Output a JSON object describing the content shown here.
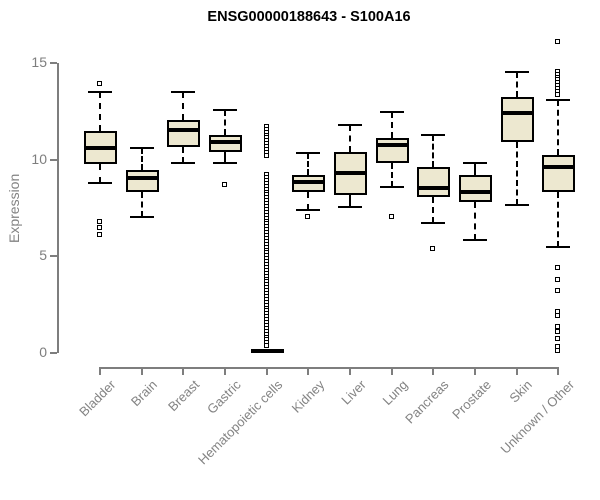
{
  "chart_data": {
    "type": "boxplot",
    "title": "ENSG00000188643 - S100A16",
    "ylabel": "Expression",
    "ylim": [
      0,
      16.5
    ],
    "yticks": [
      0,
      5,
      10,
      15
    ],
    "grid": false,
    "legend": false,
    "categories": [
      "Bladder",
      "Brain",
      "Breast",
      "Gastric",
      "Hematopoietic cells",
      "Kidney",
      "Liver",
      "Lung",
      "Pancreas",
      "Prostate",
      "Skin",
      "Unknown / Other"
    ],
    "series": [
      {
        "label": "Bladder",
        "whisker_low": 8.8,
        "q1": 9.8,
        "median": 10.6,
        "q3": 11.5,
        "whisker_high": 13.5,
        "outliers": [
          13.9,
          6.8,
          6.45,
          6.1
        ]
      },
      {
        "label": "Brain",
        "whisker_low": 7.05,
        "q1": 8.35,
        "median": 9.05,
        "q3": 9.45,
        "whisker_high": 10.6,
        "outliers": []
      },
      {
        "label": "Breast",
        "whisker_low": 9.85,
        "q1": 10.65,
        "median": 11.55,
        "q3": 12.05,
        "whisker_high": 13.5,
        "outliers": []
      },
      {
        "label": "Gastric",
        "whisker_low": 9.85,
        "q1": 10.4,
        "median": 10.9,
        "q3": 11.3,
        "whisker_high": 12.55,
        "outliers": [
          8.7
        ]
      },
      {
        "label": "Hematopoietic cells",
        "whisker_low": 0,
        "q1": 0,
        "median": 0.1,
        "q3": 0.2,
        "whisker_high": 0.2,
        "outliers": [
          11.7,
          11.55,
          11.4,
          11.25,
          11.1,
          10.95,
          10.8,
          10.65,
          10.5,
          10.35,
          10.2,
          9.2,
          9.05,
          8.9,
          8.75,
          8.6,
          8.45,
          8.3,
          8.15,
          8.0,
          7.85,
          7.7,
          7.55,
          7.4,
          7.25,
          7.1,
          6.95,
          6.8,
          6.65,
          6.5,
          6.35,
          6.2,
          6.05,
          5.9,
          5.75,
          5.6,
          5.45,
          5.3,
          5.15,
          5.0,
          4.85,
          4.7,
          4.55,
          4.4,
          4.25,
          4.1,
          3.95,
          3.8,
          3.65,
          3.5,
          3.35,
          3.2,
          3.05,
          2.9,
          2.75,
          2.6,
          2.45,
          2.3,
          2.15,
          2.0,
          1.85,
          1.7,
          1.55,
          1.4,
          1.25,
          1.1,
          0.95,
          0.8,
          0.65,
          0.5,
          0.35
        ]
      },
      {
        "label": "Kidney",
        "whisker_low": 7.4,
        "q1": 8.35,
        "median": 8.85,
        "q3": 9.2,
        "whisker_high": 10.35,
        "outliers": [
          7.05
        ]
      },
      {
        "label": "Liver",
        "whisker_low": 7.55,
        "q1": 8.15,
        "median": 9.3,
        "q3": 10.4,
        "whisker_high": 11.8,
        "outliers": []
      },
      {
        "label": "Lung",
        "whisker_low": 8.6,
        "q1": 9.85,
        "median": 10.75,
        "q3": 11.1,
        "whisker_high": 12.45,
        "outliers": [
          7.05
        ]
      },
      {
        "label": "Pancreas",
        "whisker_low": 6.7,
        "q1": 8.05,
        "median": 8.55,
        "q3": 9.6,
        "whisker_high": 11.3,
        "outliers": [
          5.4
        ]
      },
      {
        "label": "Prostate",
        "whisker_low": 5.85,
        "q1": 7.8,
        "median": 8.35,
        "q3": 9.2,
        "whisker_high": 9.85,
        "outliers": []
      },
      {
        "label": "Skin",
        "whisker_low": 7.65,
        "q1": 10.9,
        "median": 12.4,
        "q3": 13.25,
        "whisker_high": 14.55,
        "outliers": []
      },
      {
        "label": "Unknown / Other",
        "whisker_low": 5.5,
        "q1": 8.35,
        "median": 9.6,
        "q3": 10.25,
        "whisker_high": 13.1,
        "outliers": [
          16.1,
          14.55,
          14.4,
          14.25,
          14.1,
          13.95,
          13.8,
          13.65,
          13.5,
          13.35,
          4.4,
          3.8,
          3.2,
          2.1,
          1.9,
          1.35,
          1.1,
          0.7,
          0.3,
          0.1
        ]
      }
    ],
    "style": {
      "box_fill": "#EDE8D0",
      "box_border": "#000000",
      "median_color": "#000000",
      "axis_color": "#838383",
      "title_color": "#000000"
    }
  }
}
